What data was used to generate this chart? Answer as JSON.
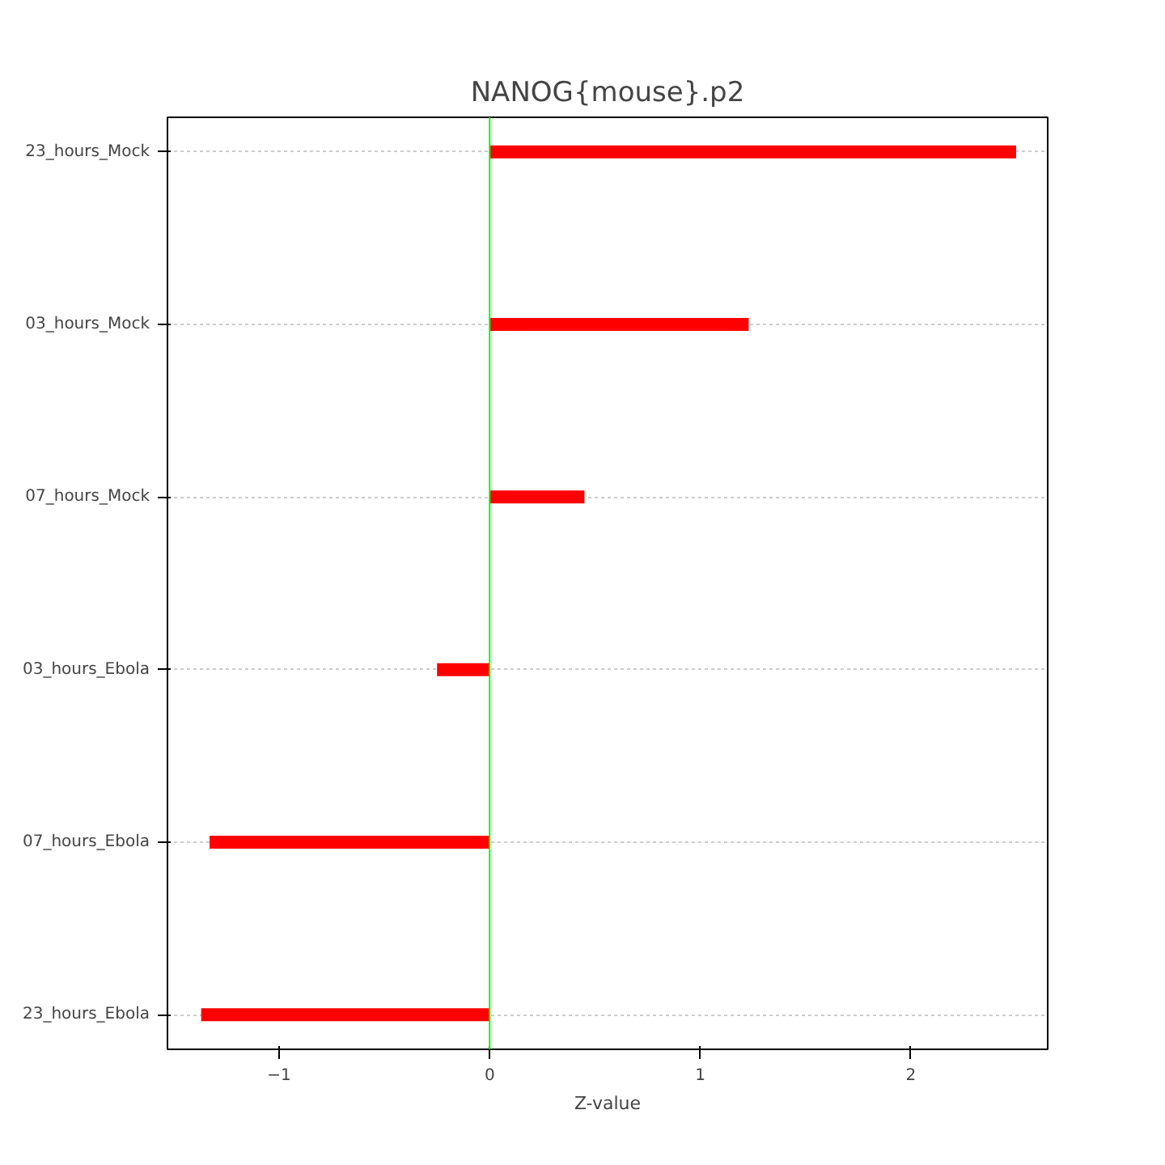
{
  "chart_data": {
    "type": "bar",
    "orientation": "horizontal",
    "title": "NANOG{mouse}.p2",
    "xlabel": "Z-value",
    "categories": [
      "23_hours_Mock",
      "03_hours_Mock",
      "07_hours_Mock",
      "03_hours_Ebola",
      "07_hours_Ebola",
      "23_hours_Ebola"
    ],
    "values": [
      2.5,
      1.23,
      0.45,
      -0.25,
      -1.33,
      -1.37
    ],
    "color": "#ff0000",
    "xlim": [
      -1.53,
      2.65
    ],
    "xticks": [
      -1,
      0,
      1,
      2
    ],
    "grid": "y",
    "ref_lines": [
      {
        "axis": "x",
        "value": 0,
        "color": "#00ff00"
      }
    ]
  }
}
